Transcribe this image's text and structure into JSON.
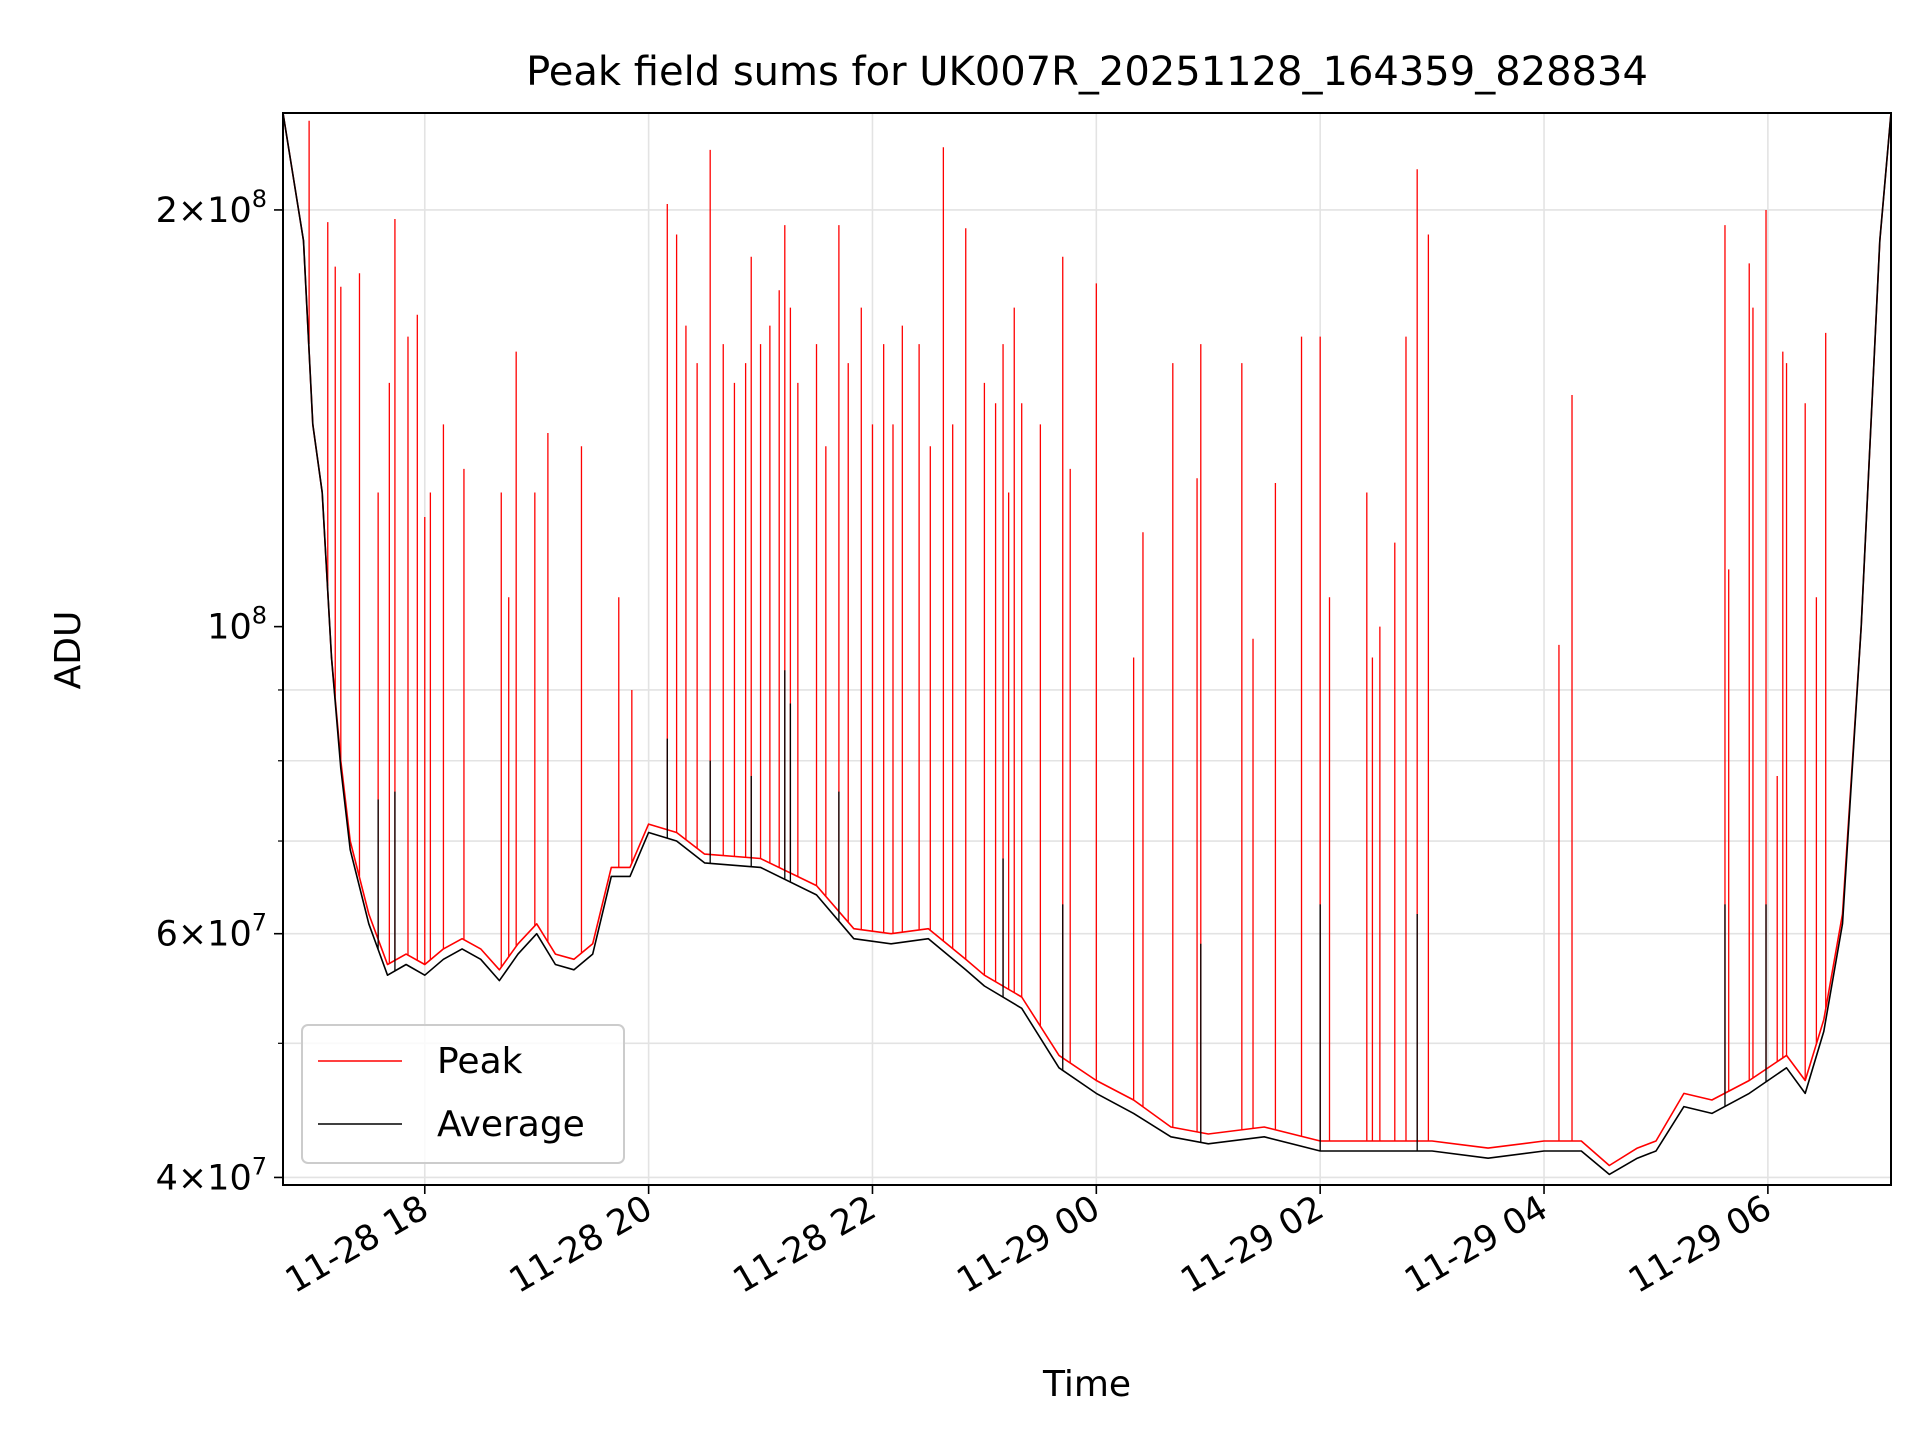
{
  "chart_data": {
    "type": "line",
    "title": "Peak field sums for UK007R_20251128_164359_828834",
    "xlabel": "Time",
    "ylabel": "ADU",
    "y_scale": "log",
    "ylim": [
      39500000,
      235000000
    ],
    "xlim": [
      "2025-11-28 16:44",
      "2025-11-29 07:06"
    ],
    "grid": true,
    "legend_position": "lower-left",
    "x_ticks": [
      {
        "value": "2025-11-28 18:00",
        "label": "11-28 18"
      },
      {
        "value": "2025-11-28 20:00",
        "label": "11-28 20"
      },
      {
        "value": "2025-11-28 22:00",
        "label": "11-28 22"
      },
      {
        "value": "2025-11-29 00:00",
        "label": "11-29 00"
      },
      {
        "value": "2025-11-29 02:00",
        "label": "11-29 02"
      },
      {
        "value": "2025-11-29 04:00",
        "label": "11-29 04"
      },
      {
        "value": "2025-11-29 06:00",
        "label": "11-29 06"
      }
    ],
    "y_ticks": [
      {
        "value": 40000000,
        "base": "4",
        "exp": "7"
      },
      {
        "value": 60000000,
        "base": "6",
        "exp": "7"
      },
      {
        "value": 100000000,
        "base": "",
        "exp": "8"
      },
      {
        "value": 200000000,
        "base": "2",
        "exp": "8"
      }
    ],
    "series": [
      {
        "name": "Peak",
        "color": "#ff0000",
        "baseline": [
          [
            "2025-11-28 16:44",
            235000000
          ],
          [
            "2025-11-28 16:55",
            190000000
          ],
          [
            "2025-11-28 17:00",
            140000000
          ],
          [
            "2025-11-28 17:05",
            125000000
          ],
          [
            "2025-11-28 17:10",
            95000000
          ],
          [
            "2025-11-28 17:15",
            80000000
          ],
          [
            "2025-11-28 17:20",
            70000000
          ],
          [
            "2025-11-28 17:30",
            62000000
          ],
          [
            "2025-11-28 17:40",
            57000000
          ],
          [
            "2025-11-28 17:50",
            58000000
          ],
          [
            "2025-11-28 18:00",
            57000000
          ],
          [
            "2025-11-28 18:10",
            58500000
          ],
          [
            "2025-11-28 18:20",
            59500000
          ],
          [
            "2025-11-28 18:30",
            58500000
          ],
          [
            "2025-11-28 18:40",
            56500000
          ],
          [
            "2025-11-28 18:50",
            59000000
          ],
          [
            "2025-11-28 19:00",
            61000000
          ],
          [
            "2025-11-28 19:10",
            58000000
          ],
          [
            "2025-11-28 19:20",
            57500000
          ],
          [
            "2025-11-28 19:30",
            59000000
          ],
          [
            "2025-11-28 19:40",
            67000000
          ],
          [
            "2025-11-28 19:50",
            67000000
          ],
          [
            "2025-11-28 20:00",
            72000000
          ],
          [
            "2025-11-28 20:15",
            71000000
          ],
          [
            "2025-11-28 20:30",
            68500000
          ],
          [
            "2025-11-28 21:00",
            68000000
          ],
          [
            "2025-11-28 21:30",
            65000000
          ],
          [
            "2025-11-28 21:50",
            60500000
          ],
          [
            "2025-11-28 22:10",
            60000000
          ],
          [
            "2025-11-28 22:30",
            60500000
          ],
          [
            "2025-11-28 22:50",
            57500000
          ],
          [
            "2025-11-28 23:00",
            56000000
          ],
          [
            "2025-11-28 23:20",
            54000000
          ],
          [
            "2025-11-28 23:40",
            49000000
          ],
          [
            "2025-11-29 00:00",
            47000000
          ],
          [
            "2025-11-29 00:20",
            45500000
          ],
          [
            "2025-11-29 00:40",
            43500000
          ],
          [
            "2025-11-29 01:00",
            43000000
          ],
          [
            "2025-11-29 01:30",
            43500000
          ],
          [
            "2025-11-29 02:00",
            42500000
          ],
          [
            "2025-11-29 02:30",
            42500000
          ],
          [
            "2025-11-29 03:00",
            42500000
          ],
          [
            "2025-11-29 03:30",
            42000000
          ],
          [
            "2025-11-29 04:00",
            42500000
          ],
          [
            "2025-11-29 04:20",
            42500000
          ],
          [
            "2025-11-29 04:35",
            40800000
          ],
          [
            "2025-11-29 04:50",
            42000000
          ],
          [
            "2025-11-29 05:00",
            42500000
          ],
          [
            "2025-11-29 05:15",
            46000000
          ],
          [
            "2025-11-29 05:30",
            45500000
          ],
          [
            "2025-11-29 05:50",
            47000000
          ],
          [
            "2025-11-29 06:10",
            49000000
          ],
          [
            "2025-11-29 06:20",
            47000000
          ],
          [
            "2025-11-29 06:30",
            52000000
          ],
          [
            "2025-11-29 06:40",
            62000000
          ],
          [
            "2025-11-29 06:50",
            100000000
          ],
          [
            "2025-11-29 07:00",
            190000000
          ],
          [
            "2025-11-29 07:06",
            235000000
          ]
        ],
        "spikes": [
          [
            "2025-11-28 16:58",
            232000000
          ],
          [
            "2025-11-28 17:08",
            196000000
          ],
          [
            "2025-11-28 17:12",
            182000000
          ],
          [
            "2025-11-28 17:15",
            176000000
          ],
          [
            "2025-11-28 17:25",
            180000000
          ],
          [
            "2025-11-28 17:35",
            125000000
          ],
          [
            "2025-11-28 17:41",
            150000000
          ],
          [
            "2025-11-28 17:44",
            197000000
          ],
          [
            "2025-11-28 17:51",
            162000000
          ],
          [
            "2025-11-28 17:56",
            168000000
          ],
          [
            "2025-11-28 18:00",
            120000000
          ],
          [
            "2025-11-28 18:03",
            125000000
          ],
          [
            "2025-11-28 18:10",
            140000000
          ],
          [
            "2025-11-28 18:21",
            130000000
          ],
          [
            "2025-11-28 18:41",
            125000000
          ],
          [
            "2025-11-28 18:45",
            105000000
          ],
          [
            "2025-11-28 18:49",
            158000000
          ],
          [
            "2025-11-28 18:59",
            125000000
          ],
          [
            "2025-11-28 19:06",
            138000000
          ],
          [
            "2025-11-28 19:24",
            135000000
          ],
          [
            "2025-11-28 19:44",
            105000000
          ],
          [
            "2025-11-28 19:51",
            90000000
          ],
          [
            "2025-11-28 20:10",
            202000000
          ],
          [
            "2025-11-28 20:15",
            192000000
          ],
          [
            "2025-11-28 20:20",
            165000000
          ],
          [
            "2025-11-28 20:26",
            155000000
          ],
          [
            "2025-11-28 20:33",
            221000000
          ],
          [
            "2025-11-28 20:40",
            160000000
          ],
          [
            "2025-11-28 20:46",
            150000000
          ],
          [
            "2025-11-28 20:52",
            155000000
          ],
          [
            "2025-11-28 20:55",
            185000000
          ],
          [
            "2025-11-28 21:00",
            160000000
          ],
          [
            "2025-11-28 21:05",
            165000000
          ],
          [
            "2025-11-28 21:10",
            175000000
          ],
          [
            "2025-11-28 21:13",
            195000000
          ],
          [
            "2025-11-28 21:16",
            170000000
          ],
          [
            "2025-11-28 21:20",
            150000000
          ],
          [
            "2025-11-28 21:30",
            160000000
          ],
          [
            "2025-11-28 21:35",
            135000000
          ],
          [
            "2025-11-28 21:42",
            195000000
          ],
          [
            "2025-11-28 21:47",
            155000000
          ],
          [
            "2025-11-28 21:54",
            170000000
          ],
          [
            "2025-11-28 22:00",
            140000000
          ],
          [
            "2025-11-28 22:06",
            160000000
          ],
          [
            "2025-11-28 22:11",
            140000000
          ],
          [
            "2025-11-28 22:16",
            165000000
          ],
          [
            "2025-11-28 22:25",
            160000000
          ],
          [
            "2025-11-28 22:31",
            135000000
          ],
          [
            "2025-11-28 22:38",
            222000000
          ],
          [
            "2025-11-28 22:43",
            140000000
          ],
          [
            "2025-11-28 22:50",
            194000000
          ],
          [
            "2025-11-28 23:00",
            150000000
          ],
          [
            "2025-11-28 23:06",
            145000000
          ],
          [
            "2025-11-28 23:10",
            160000000
          ],
          [
            "2025-11-28 23:13",
            125000000
          ],
          [
            "2025-11-28 23:16",
            170000000
          ],
          [
            "2025-11-28 23:20",
            145000000
          ],
          [
            "2025-11-28 23:30",
            140000000
          ],
          [
            "2025-11-28 23:42",
            185000000
          ],
          [
            "2025-11-28 23:46",
            130000000
          ],
          [
            "2025-11-29 00:00",
            177000000
          ],
          [
            "2025-11-29 00:20",
            95000000
          ],
          [
            "2025-11-29 00:25",
            117000000
          ],
          [
            "2025-11-29 00:41",
            155000000
          ],
          [
            "2025-11-29 00:54",
            128000000
          ],
          [
            "2025-11-29 00:56",
            160000000
          ],
          [
            "2025-11-29 01:18",
            155000000
          ],
          [
            "2025-11-29 01:24",
            98000000
          ],
          [
            "2025-11-29 01:36",
            127000000
          ],
          [
            "2025-11-29 01:50",
            162000000
          ],
          [
            "2025-11-29 02:00",
            162000000
          ],
          [
            "2025-11-29 02:05",
            105000000
          ],
          [
            "2025-11-29 02:25",
            125000000
          ],
          [
            "2025-11-29 02:28",
            95000000
          ],
          [
            "2025-11-29 02:32",
            100000000
          ],
          [
            "2025-11-29 02:40",
            115000000
          ],
          [
            "2025-11-29 02:46",
            162000000
          ],
          [
            "2025-11-29 02:52",
            214000000
          ],
          [
            "2025-11-29 02:58",
            192000000
          ],
          [
            "2025-11-29 04:08",
            97000000
          ],
          [
            "2025-11-29 04:15",
            147000000
          ],
          [
            "2025-11-29 05:37",
            195000000
          ],
          [
            "2025-11-29 05:39",
            110000000
          ],
          [
            "2025-11-29 05:50",
            183000000
          ],
          [
            "2025-11-29 05:52",
            170000000
          ],
          [
            "2025-11-29 05:59",
            200000000
          ],
          [
            "2025-11-29 06:05",
            78000000
          ],
          [
            "2025-11-29 06:08",
            158000000
          ],
          [
            "2025-11-29 06:10",
            155000000
          ],
          [
            "2025-11-29 06:20",
            145000000
          ],
          [
            "2025-11-29 06:26",
            105000000
          ],
          [
            "2025-11-29 06:31",
            163000000
          ]
        ]
      },
      {
        "name": "Average",
        "color": "#000000",
        "baseline": [
          [
            "2025-11-28 16:44",
            235000000
          ],
          [
            "2025-11-28 16:55",
            190000000
          ],
          [
            "2025-11-28 17:00",
            140000000
          ],
          [
            "2025-11-28 17:05",
            125000000
          ],
          [
            "2025-11-28 17:10",
            95000000
          ],
          [
            "2025-11-28 17:15",
            79000000
          ],
          [
            "2025-11-28 17:20",
            69000000
          ],
          [
            "2025-11-28 17:30",
            61000000
          ],
          [
            "2025-11-28 17:40",
            56000000
          ],
          [
            "2025-11-28 17:50",
            57000000
          ],
          [
            "2025-11-28 18:00",
            56000000
          ],
          [
            "2025-11-28 18:10",
            57500000
          ],
          [
            "2025-11-28 18:20",
            58500000
          ],
          [
            "2025-11-28 18:30",
            57500000
          ],
          [
            "2025-11-28 18:40",
            55500000
          ],
          [
            "2025-11-28 18:50",
            58000000
          ],
          [
            "2025-11-28 19:00",
            60000000
          ],
          [
            "2025-11-28 19:10",
            57000000
          ],
          [
            "2025-11-28 19:20",
            56500000
          ],
          [
            "2025-11-28 19:30",
            58000000
          ],
          [
            "2025-11-28 19:40",
            66000000
          ],
          [
            "2025-11-28 19:50",
            66000000
          ],
          [
            "2025-11-28 20:00",
            71000000
          ],
          [
            "2025-11-28 20:15",
            70000000
          ],
          [
            "2025-11-28 20:30",
            67500000
          ],
          [
            "2025-11-28 21:00",
            67000000
          ],
          [
            "2025-11-28 21:30",
            64000000
          ],
          [
            "2025-11-28 21:50",
            59500000
          ],
          [
            "2025-11-28 22:10",
            59000000
          ],
          [
            "2025-11-28 22:30",
            59500000
          ],
          [
            "2025-11-28 22:50",
            56500000
          ],
          [
            "2025-11-28 23:00",
            55000000
          ],
          [
            "2025-11-28 23:20",
            53000000
          ],
          [
            "2025-11-28 23:40",
            48000000
          ],
          [
            "2025-11-29 00:00",
            46000000
          ],
          [
            "2025-11-29 00:20",
            44500000
          ],
          [
            "2025-11-29 00:40",
            42800000
          ],
          [
            "2025-11-29 01:00",
            42300000
          ],
          [
            "2025-11-29 01:30",
            42800000
          ],
          [
            "2025-11-29 02:00",
            41800000
          ],
          [
            "2025-11-29 02:30",
            41800000
          ],
          [
            "2025-11-29 03:00",
            41800000
          ],
          [
            "2025-11-29 03:30",
            41300000
          ],
          [
            "2025-11-29 04:00",
            41800000
          ],
          [
            "2025-11-29 04:20",
            41800000
          ],
          [
            "2025-11-29 04:35",
            40200000
          ],
          [
            "2025-11-29 04:50",
            41300000
          ],
          [
            "2025-11-29 05:00",
            41800000
          ],
          [
            "2025-11-29 05:15",
            45000000
          ],
          [
            "2025-11-29 05:30",
            44500000
          ],
          [
            "2025-11-29 05:50",
            46000000
          ],
          [
            "2025-11-29 06:10",
            48000000
          ],
          [
            "2025-11-29 06:20",
            46000000
          ],
          [
            "2025-11-29 06:30",
            51000000
          ],
          [
            "2025-11-29 06:40",
            61000000
          ],
          [
            "2025-11-29 06:50",
            100000000
          ],
          [
            "2025-11-29 07:00",
            190000000
          ],
          [
            "2025-11-29 07:06",
            235000000
          ]
        ],
        "spikes": [
          [
            "2025-11-28 17:35",
            75000000
          ],
          [
            "2025-11-28 17:44",
            76000000
          ],
          [
            "2025-11-28 20:10",
            83000000
          ],
          [
            "2025-11-28 20:33",
            80000000
          ],
          [
            "2025-11-28 20:55",
            78000000
          ],
          [
            "2025-11-28 21:13",
            93000000
          ],
          [
            "2025-11-28 21:16",
            88000000
          ],
          [
            "2025-11-28 21:42",
            76000000
          ],
          [
            "2025-11-28 23:10",
            68000000
          ],
          [
            "2025-11-28 23:42",
            63000000
          ],
          [
            "2025-11-29 00:56",
            59000000
          ],
          [
            "2025-11-29 02:00",
            63000000
          ],
          [
            "2025-11-29 02:52",
            62000000
          ],
          [
            "2025-11-29 05:37",
            63000000
          ],
          [
            "2025-11-29 05:59",
            63000000
          ]
        ]
      }
    ]
  }
}
